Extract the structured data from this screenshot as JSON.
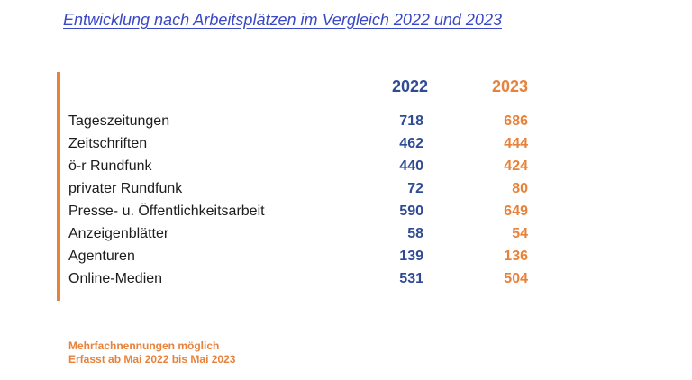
{
  "title": "Entwicklung nach Arbeitsplätzen im Vergleich 2022 und 2023",
  "colors": {
    "title": "#3a49c4",
    "accent": "#e8823a",
    "year_2022": "#2f4b94",
    "year_2023": "#e8823a"
  },
  "table": {
    "columns": [
      "2022",
      "2023"
    ],
    "rows": [
      {
        "label": "Tageszeitungen",
        "v2022": "718",
        "v2023": "686"
      },
      {
        "label": "Zeitschriften",
        "v2022": "462",
        "v2023": "444"
      },
      {
        "label": "ö-r Rundfunk",
        "v2022": "440",
        "v2023": "424"
      },
      {
        "label": "privater Rundfunk",
        "v2022": "72",
        "v2023": "80"
      },
      {
        "label": "Presse- u. Öffentlichkeitsarbeit",
        "v2022": "590",
        "v2023": "649"
      },
      {
        "label": "Anzeigenblätter",
        "v2022": "58",
        "v2023": "54"
      },
      {
        "label": "Agenturen",
        "v2022": "139",
        "v2023": "136"
      },
      {
        "label": "Online-Medien",
        "v2022": "531",
        "v2023": "504"
      }
    ]
  },
  "notes": [
    "Mehrfachnennungen möglich",
    "Erfasst ab Mai 2022 bis Mai 2023"
  ]
}
